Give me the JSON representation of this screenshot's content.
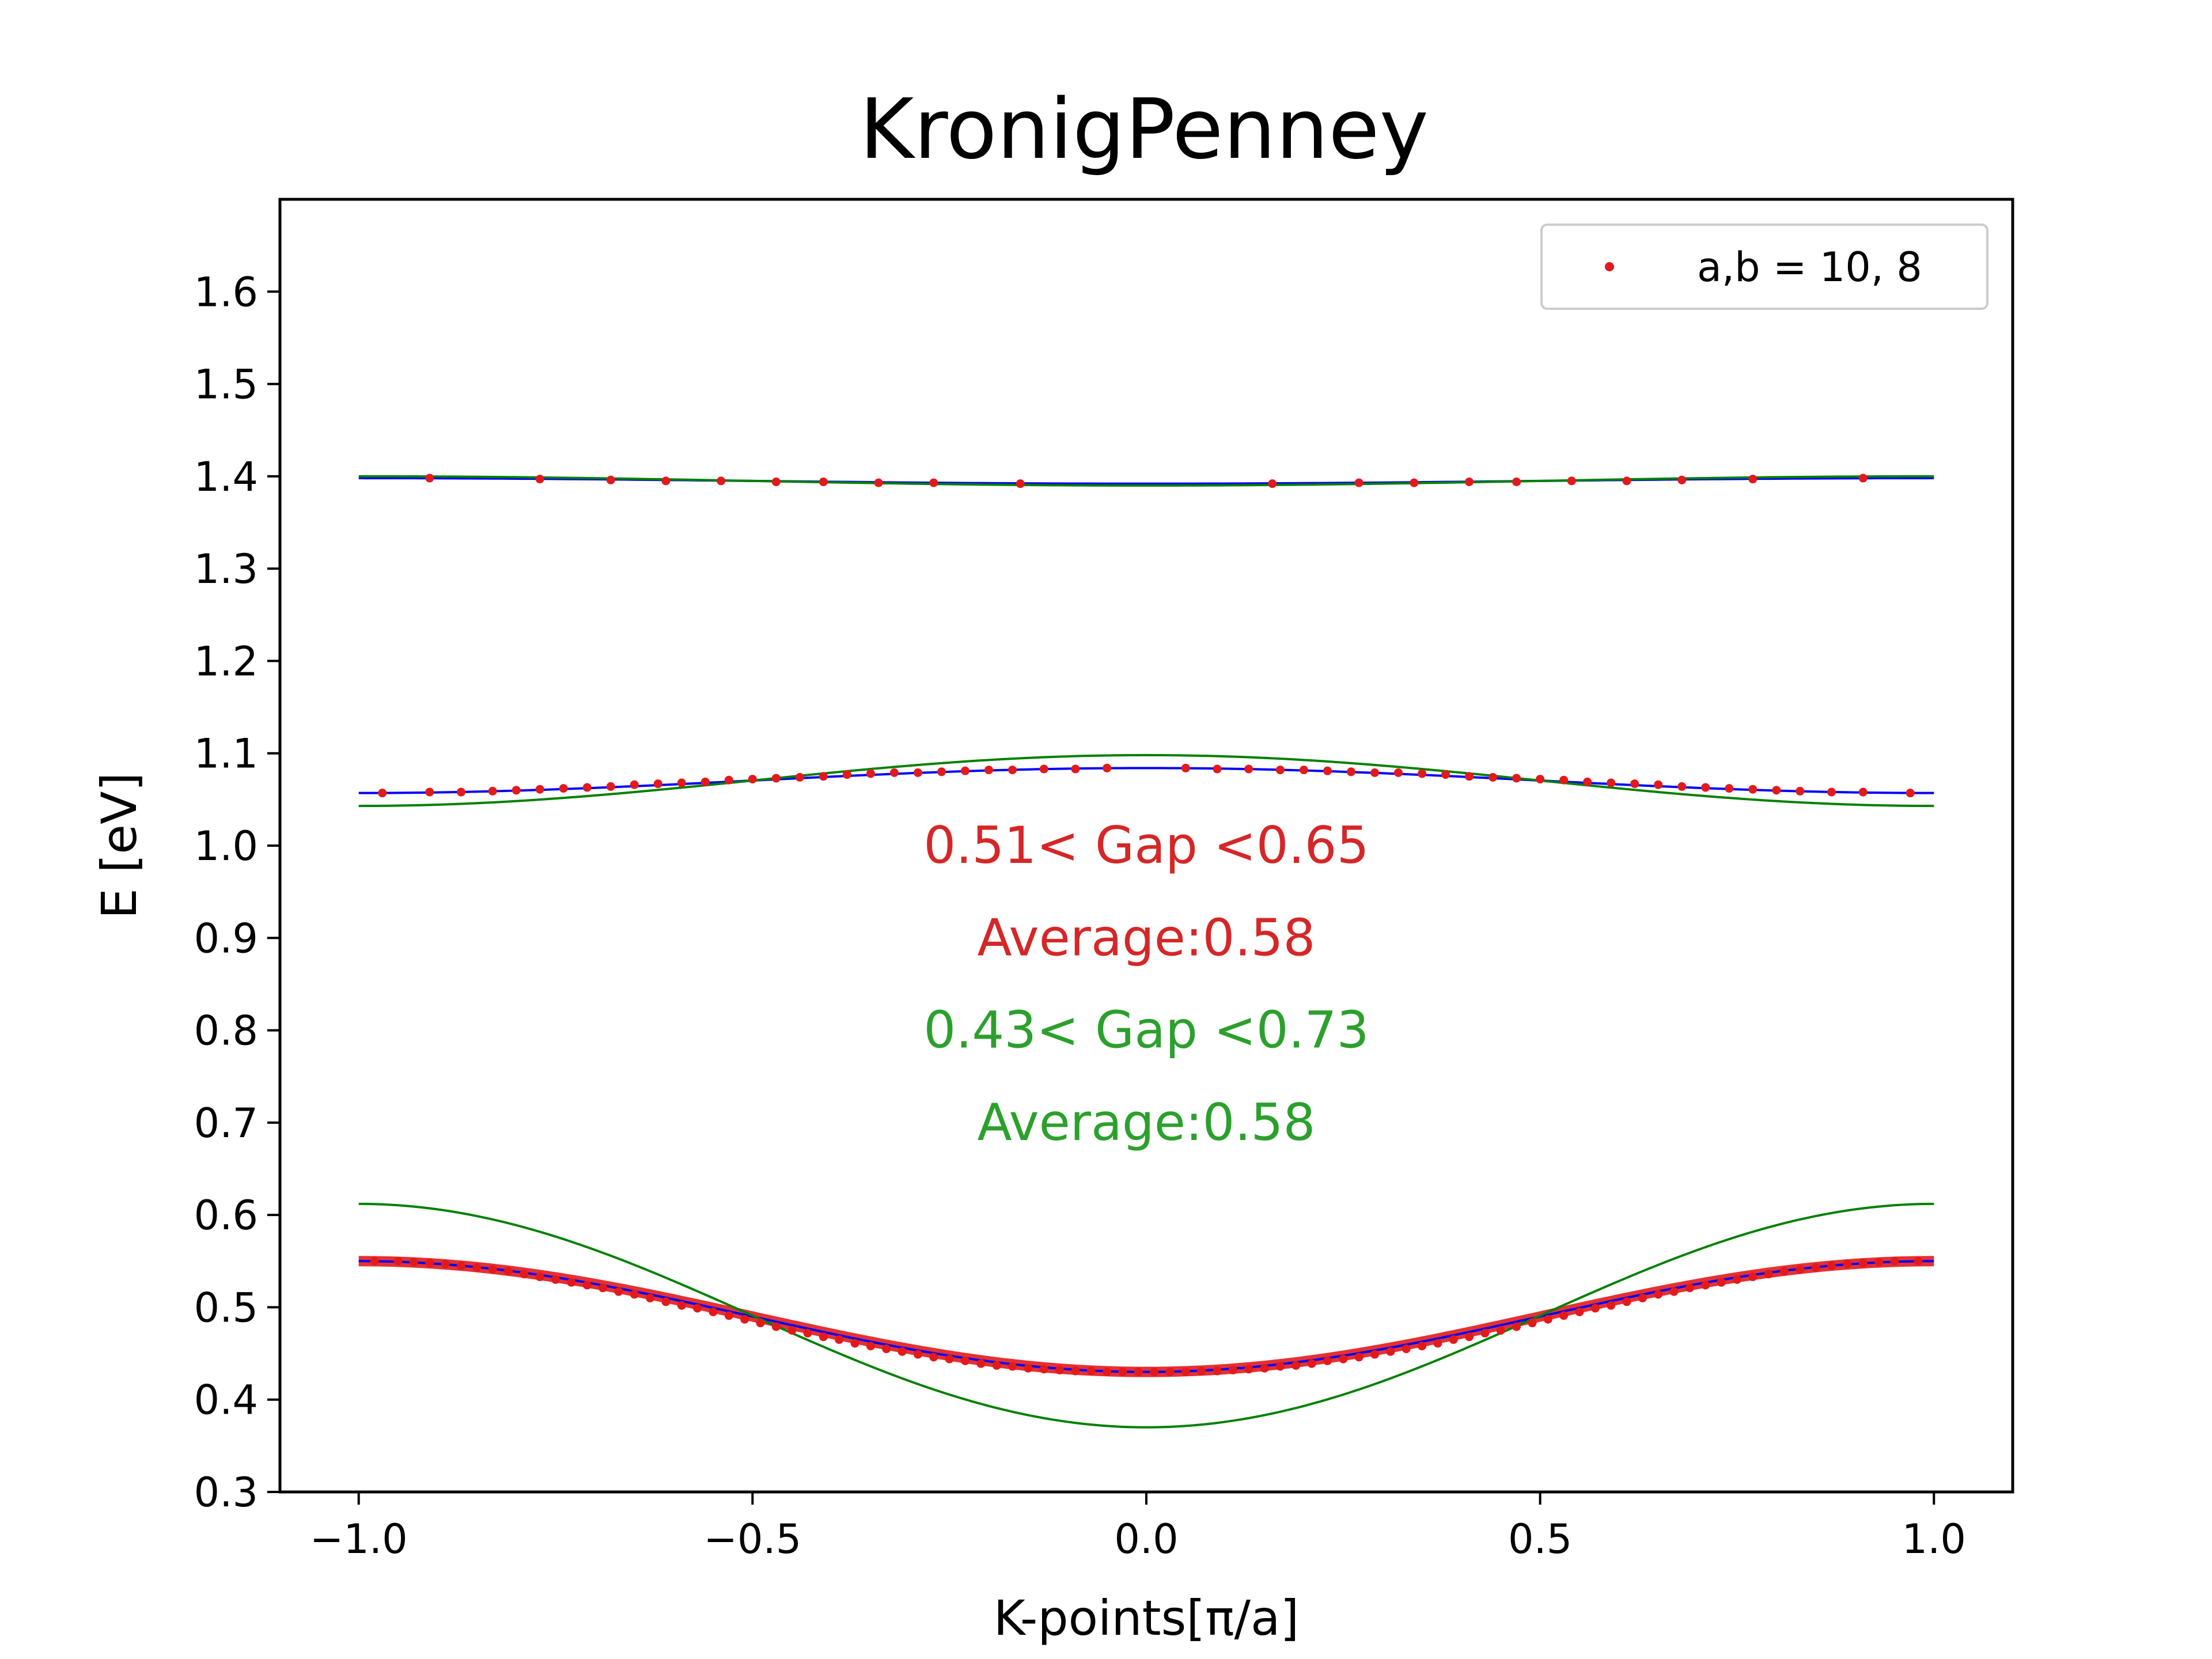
{
  "chart_data": {
    "type": "scatter",
    "title": "KronigPenney",
    "xlabel": "K-points[π/a]",
    "ylabel": "E [eV]",
    "xlim": [
      -1.1,
      1.1
    ],
    "ylim": [
      0.3,
      1.7
    ],
    "xticks": [
      {
        "value": -1.0,
        "label": "−1.0"
      },
      {
        "value": -0.5,
        "label": "−0.5"
      },
      {
        "value": 0.0,
        "label": "0.0"
      },
      {
        "value": 0.5,
        "label": "0.5"
      },
      {
        "value": 1.0,
        "label": "1.0"
      }
    ],
    "yticks": [
      {
        "value": 0.3,
        "label": "0.3"
      },
      {
        "value": 0.4,
        "label": "0.4"
      },
      {
        "value": 0.5,
        "label": "0.5"
      },
      {
        "value": 0.6,
        "label": "0.6"
      },
      {
        "value": 0.7,
        "label": "0.7"
      },
      {
        "value": 0.8,
        "label": "0.8"
      },
      {
        "value": 0.9,
        "label": "0.9"
      },
      {
        "value": 1.0,
        "label": "1.0"
      },
      {
        "value": 1.1,
        "label": "1.1"
      },
      {
        "value": 1.2,
        "label": "1.2"
      },
      {
        "value": 1.3,
        "label": "1.3"
      },
      {
        "value": 1.4,
        "label": "1.4"
      },
      {
        "value": 1.5,
        "label": "1.5"
      },
      {
        "value": 1.6,
        "label": "1.6"
      }
    ],
    "grid": false,
    "legend": {
      "position": "top-right",
      "entries": [
        {
          "label": "a,b = 10, 8",
          "color": "#e31a1c",
          "marker": "dot"
        }
      ]
    },
    "colors": {
      "points": "#e31a1c",
      "blue_curve": "#0000ff",
      "green_curve": "#008000",
      "annot_red": "#d62728",
      "annot_green": "#2ca02c"
    },
    "bands": [
      {
        "points": {
          "x": [
            -0.98,
            -0.95,
            -0.93,
            -0.91,
            -0.89,
            -0.87,
            -0.85,
            -0.83,
            -0.81,
            -0.79,
            -0.77,
            -0.75,
            -0.73,
            -0.71,
            -0.69,
            -0.67,
            -0.65,
            -0.63,
            -0.61,
            -0.59,
            -0.57,
            -0.55,
            -0.53,
            -0.51,
            -0.49,
            -0.47,
            -0.45,
            -0.43,
            -0.41,
            -0.39,
            -0.37,
            -0.35,
            -0.33,
            -0.31,
            -0.29,
            -0.27,
            -0.25,
            -0.23,
            -0.21,
            -0.19,
            -0.17,
            -0.15,
            -0.13,
            -0.11,
            -0.09,
            -0.07,
            -0.05,
            -0.03,
            -0.01,
            0.01,
            0.03,
            0.05,
            0.07,
            0.09,
            0.11,
            0.13,
            0.15,
            0.17,
            0.19,
            0.21,
            0.23,
            0.25,
            0.27,
            0.29,
            0.31,
            0.33,
            0.35,
            0.37,
            0.39,
            0.41,
            0.43,
            0.45,
            0.47,
            0.49,
            0.51,
            0.53,
            0.55,
            0.57,
            0.59,
            0.61,
            0.63,
            0.65,
            0.67,
            0.69,
            0.71,
            0.73,
            0.75,
            0.77,
            0.79,
            0.81,
            0.83,
            0.85,
            0.87,
            0.89,
            0.91,
            0.93,
            0.95,
            0.98
          ],
          "y": [
            0.55,
            0.55,
            0.549,
            0.548,
            0.547,
            0.545,
            0.543,
            0.541,
            0.539,
            0.536,
            0.533,
            0.53,
            0.527,
            0.524,
            0.521,
            0.517,
            0.514,
            0.51,
            0.506,
            0.502,
            0.499,
            0.495,
            0.491,
            0.487,
            0.483,
            0.479,
            0.475,
            0.472,
            0.468,
            0.465,
            0.461,
            0.458,
            0.455,
            0.452,
            0.449,
            0.446,
            0.444,
            0.442,
            0.439,
            0.437,
            0.436,
            0.434,
            0.433,
            0.432,
            0.431,
            0.431,
            0.43,
            0.43,
            0.43,
            0.43,
            0.43,
            0.43,
            0.431,
            0.431,
            0.432,
            0.433,
            0.434,
            0.436,
            0.437,
            0.439,
            0.442,
            0.444,
            0.446,
            0.449,
            0.452,
            0.455,
            0.458,
            0.461,
            0.465,
            0.468,
            0.472,
            0.475,
            0.479,
            0.483,
            0.487,
            0.491,
            0.495,
            0.499,
            0.502,
            0.506,
            0.51,
            0.514,
            0.517,
            0.521,
            0.524,
            0.527,
            0.53,
            0.533,
            0.536,
            0.539,
            0.541,
            0.543,
            0.545,
            0.547,
            0.548,
            0.549,
            0.55,
            0.55
          ]
        },
        "blue_curve": {
          "min": 0.43,
          "max": 0.55,
          "shape": "minimum_at_center"
        },
        "green_curve": {
          "min": 0.37,
          "max": 0.612,
          "shape": "minimum_at_center"
        }
      },
      {
        "points": {
          "x": [
            -0.97,
            -0.91,
            -0.87,
            -0.83,
            -0.8,
            -0.77,
            -0.74,
            -0.71,
            -0.68,
            -0.65,
            -0.62,
            -0.59,
            -0.56,
            -0.53,
            -0.5,
            -0.47,
            -0.44,
            -0.41,
            -0.38,
            -0.35,
            -0.32,
            -0.29,
            -0.26,
            -0.23,
            -0.2,
            -0.17,
            -0.13,
            -0.09,
            -0.05,
            0.05,
            0.09,
            0.13,
            0.17,
            0.2,
            0.23,
            0.26,
            0.29,
            0.32,
            0.35,
            0.38,
            0.41,
            0.44,
            0.47,
            0.5,
            0.53,
            0.56,
            0.59,
            0.62,
            0.65,
            0.68,
            0.71,
            0.74,
            0.77,
            0.8,
            0.83,
            0.87,
            0.91,
            0.97
          ],
          "y": [
            1.057,
            1.058,
            1.058,
            1.059,
            1.06,
            1.061,
            1.062,
            1.063,
            1.064,
            1.066,
            1.067,
            1.068,
            1.069,
            1.071,
            1.072,
            1.073,
            1.074,
            1.075,
            1.077,
            1.078,
            1.079,
            1.079,
            1.08,
            1.081,
            1.082,
            1.082,
            1.083,
            1.083,
            1.084,
            1.084,
            1.083,
            1.083,
            1.082,
            1.082,
            1.081,
            1.08,
            1.079,
            1.079,
            1.078,
            1.077,
            1.075,
            1.074,
            1.073,
            1.072,
            1.071,
            1.069,
            1.068,
            1.067,
            1.066,
            1.064,
            1.063,
            1.062,
            1.061,
            1.06,
            1.059,
            1.058,
            1.058,
            1.057
          ]
        },
        "blue_curve": {
          "min": 1.057,
          "max": 1.084,
          "shape": "maximum_at_center"
        },
        "green_curve": {
          "min": 1.043,
          "max": 1.098,
          "shape": "maximum_at_center"
        }
      },
      {
        "points": {
          "x": [
            -0.91,
            -0.77,
            -0.68,
            -0.61,
            -0.54,
            -0.47,
            -0.41,
            -0.34,
            -0.27,
            -0.16,
            0.16,
            0.27,
            0.34,
            0.41,
            0.47,
            0.54,
            0.61,
            0.68,
            0.77,
            0.91
          ],
          "y": [
            1.398,
            1.397,
            1.396,
            1.395,
            1.395,
            1.394,
            1.394,
            1.393,
            1.393,
            1.392,
            1.392,
            1.393,
            1.393,
            1.394,
            1.394,
            1.395,
            1.395,
            1.396,
            1.397,
            1.398
          ]
        },
        "blue_curve": {
          "min": 1.392,
          "max": 1.398,
          "shape": "minimum_at_center"
        },
        "green_curve": {
          "min": 1.39,
          "max": 1.4,
          "shape": "minimum_at_center"
        }
      }
    ],
    "annotations": [
      {
        "text": "0.51< Gap <0.65",
        "x": 0.0,
        "y": 1.0,
        "color": "#d62728"
      },
      {
        "text": "Average:0.58",
        "x": 0.0,
        "y": 0.9,
        "color": "#d62728"
      },
      {
        "text": "0.43< Gap <0.73",
        "x": 0.0,
        "y": 0.8,
        "color": "#2ca02c"
      },
      {
        "text": "Average:0.58",
        "x": 0.0,
        "y": 0.7,
        "color": "#2ca02c"
      }
    ]
  }
}
